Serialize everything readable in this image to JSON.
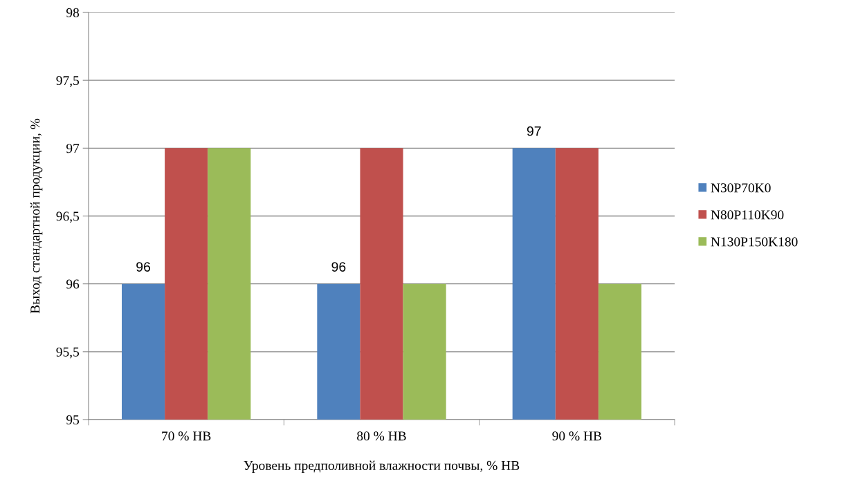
{
  "chart_data": {
    "type": "bar",
    "xlabel": "Уровень предполивной влажности почвы, % НВ",
    "ylabel": "Выход стандартной продукции, %",
    "categories": [
      "70 % НВ",
      "80 % НВ",
      "90 % НВ"
    ],
    "series": [
      {
        "name": "N30P70K0",
        "color": "#4f81bd",
        "values": [
          96,
          96,
          97
        ],
        "value_labels": [
          "96",
          "96",
          "97"
        ]
      },
      {
        "name": "N80P110K90",
        "color": "#c0504d",
        "values": [
          97,
          97,
          97
        ]
      },
      {
        "name": "N130P150K180",
        "color": "#9bbb59",
        "values": [
          97,
          96,
          96
        ]
      }
    ],
    "ylim": [
      95,
      98
    ],
    "yticks": [
      95,
      {
        "value": 95.5,
        "label": "95,5"
      },
      96,
      {
        "value": 96.5,
        "label": "96,5"
      },
      97,
      {
        "value": 97.5,
        "label": "97,5"
      },
      98
    ],
    "grid": "y",
    "legend": "right"
  }
}
